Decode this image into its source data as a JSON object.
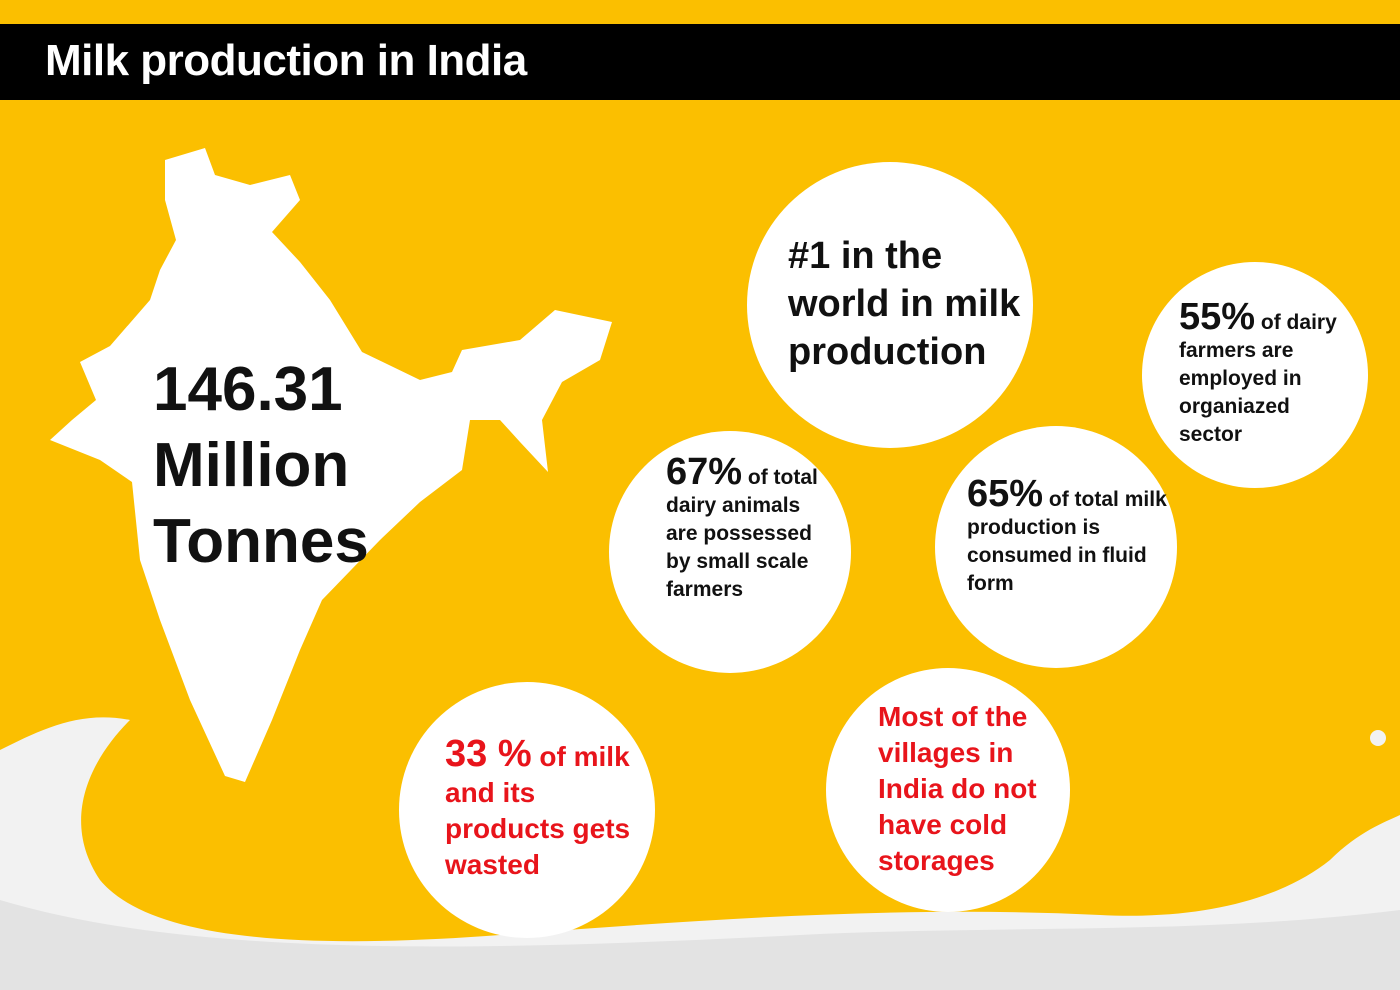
{
  "title": "Milk production in India",
  "colors": {
    "background": "#FBBF00",
    "header": "#000000",
    "highlight": "#E8141B"
  },
  "map": {
    "line1": "146.31",
    "line2": "Million",
    "line3": "Tonnes"
  },
  "facts": {
    "rank": {
      "text": "#1 in the world in milk production"
    },
    "organized": {
      "value": "55%",
      "text": "of dairy farmers are employed in organiazed sector"
    },
    "small_scale": {
      "value": "67%",
      "text": "of total dairy animals are possessed by small scale farmers"
    },
    "fluid": {
      "value": "65%",
      "text": "of total milk production is consumed in fluid form"
    },
    "wasted": {
      "value": "33 %",
      "text": "of milk and its products gets wasted"
    },
    "cold_storage": {
      "text": "Most of the villages in India do not have cold storages"
    }
  }
}
